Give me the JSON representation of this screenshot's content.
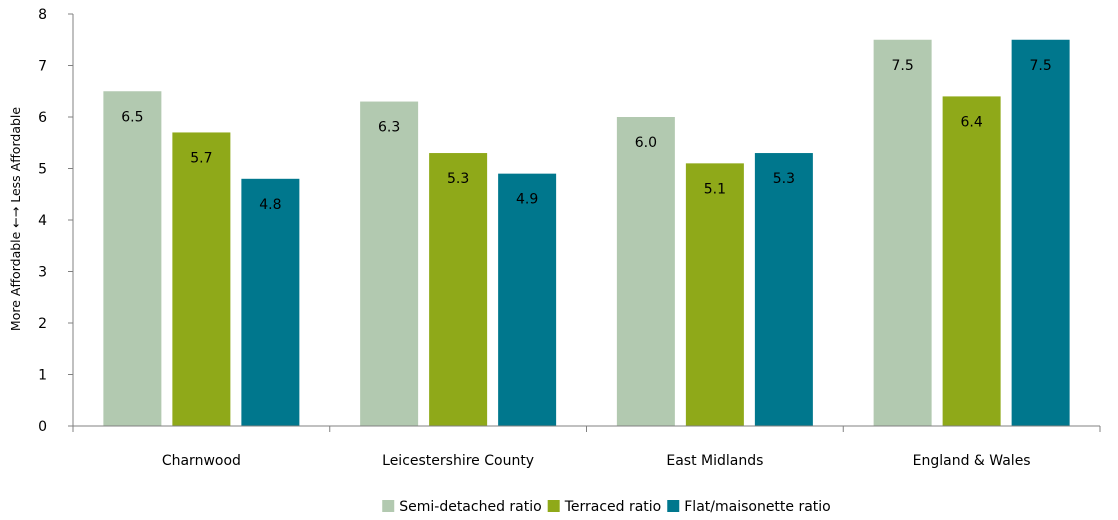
{
  "chart_data": {
    "type": "bar",
    "ylabel": "More Affordable ←→ Less Affordable",
    "ylim": [
      0,
      8
    ],
    "yticks": [
      0,
      1,
      2,
      3,
      4,
      5,
      6,
      7,
      8
    ],
    "grid": false,
    "legend_position": "bottom",
    "categories": [
      "Charnwood",
      "Leicestershire County",
      "East Midlands",
      "England & Wales"
    ],
    "series": [
      {
        "name": "Semi-detached ratio",
        "color": "#b2c9b0",
        "values": [
          6.5,
          6.3,
          6.0,
          7.5
        ],
        "labels": [
          "6.5",
          "6.3",
          "6.0",
          "7.5"
        ]
      },
      {
        "name": "Terraced ratio",
        "color": "#8fa919",
        "values": [
          5.7,
          5.3,
          5.1,
          6.4
        ],
        "labels": [
          "5.7",
          "5.3",
          "5.1",
          "6.4"
        ]
      },
      {
        "name": "Flat/maisonette ratio",
        "color": "#00778d",
        "values": [
          4.8,
          4.9,
          5.3,
          7.5
        ],
        "labels": [
          "4.8",
          "4.9",
          "5.3",
          "7.5"
        ]
      }
    ]
  }
}
